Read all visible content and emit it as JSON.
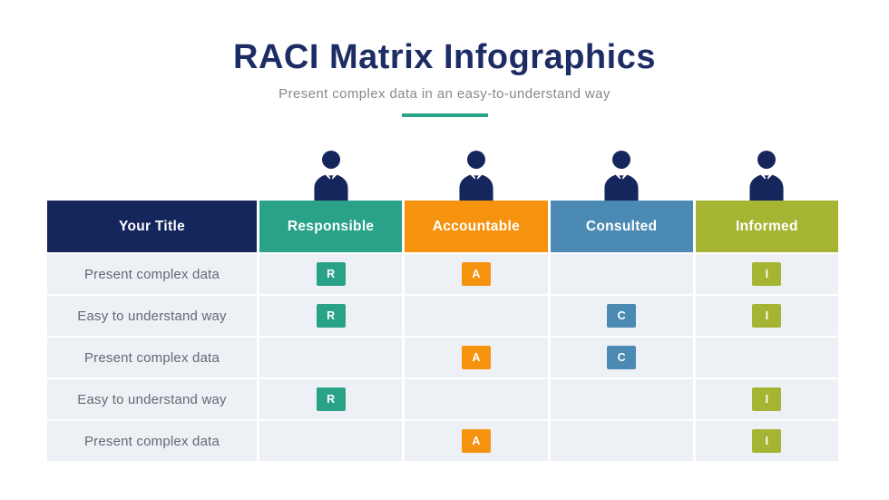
{
  "title": "RACI Matrix Infographics",
  "subtitle": "Present complex data in an easy-to-understand way",
  "colors": {
    "title_navy": "#1d2c64",
    "header_navy": "#14265b",
    "divider_teal": "#2aa287",
    "row_background": "#edf1f6",
    "body_text": "#646a72",
    "icon_navy": "#14265b"
  },
  "table": {
    "row_header_label": "Your Title",
    "columns": [
      {
        "key": "R",
        "label": "Responsible",
        "color": "#29a287"
      },
      {
        "key": "A",
        "label": "Accountable",
        "color": "#f5930f"
      },
      {
        "key": "C",
        "label": "Consulted",
        "color": "#4b8ab2"
      },
      {
        "key": "I",
        "label": "Informed",
        "color": "#a5b433"
      }
    ],
    "rows": [
      {
        "label": "Present complex data",
        "marks": [
          "R",
          "A",
          "",
          "I"
        ]
      },
      {
        "label": "Easy to understand way",
        "marks": [
          "R",
          "",
          "C",
          "I"
        ]
      },
      {
        "label": "Present complex data",
        "marks": [
          "",
          "A",
          "C",
          ""
        ]
      },
      {
        "label": "Easy to understand way",
        "marks": [
          "R",
          "",
          "",
          "I"
        ]
      },
      {
        "label": "Present complex data",
        "marks": [
          "",
          "A",
          "",
          "I"
        ]
      }
    ]
  }
}
